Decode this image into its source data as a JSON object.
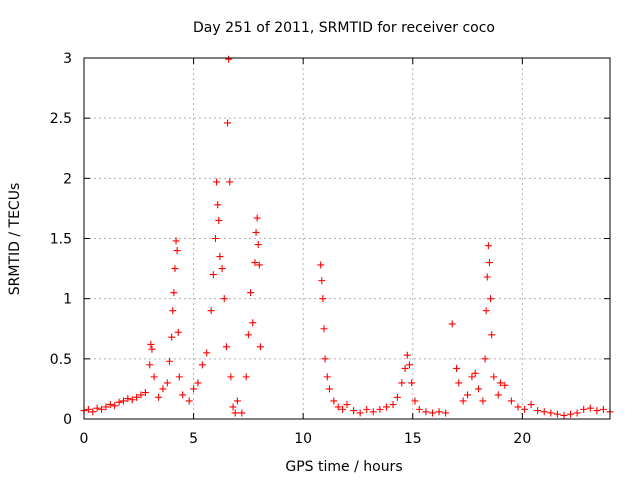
{
  "chart_data": {
    "type": "scatter",
    "title": "Day 251 of 2011, SRMTID for receiver coco",
    "xlabel": "GPS time / hours",
    "ylabel": "SRMTID / TECUs",
    "xlim": [
      0,
      24
    ],
    "ylim": [
      0,
      3
    ],
    "xticks": [
      0,
      5,
      10,
      15,
      20
    ],
    "xtick_labels": [
      "0",
      "5",
      "10",
      "15",
      "20"
    ],
    "yticks": [
      0,
      0.5,
      1,
      1.5,
      2,
      2.5,
      3
    ],
    "ytick_labels": [
      "0",
      "0.5",
      "1",
      "1.5",
      "2",
      "2.5",
      "3"
    ],
    "grid": true,
    "marker": "+",
    "color": "#ff0000",
    "series": [
      {
        "name": "SRMTID",
        "points": [
          [
            0.0,
            0.07
          ],
          [
            0.2,
            0.08
          ],
          [
            0.4,
            0.06
          ],
          [
            0.6,
            0.09
          ],
          [
            0.8,
            0.08
          ],
          [
            1.0,
            0.1
          ],
          [
            1.2,
            0.12
          ],
          [
            1.4,
            0.11
          ],
          [
            1.6,
            0.14
          ],
          [
            1.8,
            0.15
          ],
          [
            2.0,
            0.17
          ],
          [
            2.2,
            0.16
          ],
          [
            2.4,
            0.18
          ],
          [
            2.6,
            0.2
          ],
          [
            2.8,
            0.22
          ],
          [
            3.0,
            0.45
          ],
          [
            3.05,
            0.62
          ],
          [
            3.1,
            0.58
          ],
          [
            3.2,
            0.35
          ],
          [
            3.4,
            0.18
          ],
          [
            3.6,
            0.25
          ],
          [
            3.8,
            0.3
          ],
          [
            3.9,
            0.48
          ],
          [
            4.0,
            0.68
          ],
          [
            4.05,
            0.9
          ],
          [
            4.1,
            1.05
          ],
          [
            4.15,
            1.25
          ],
          [
            4.2,
            1.48
          ],
          [
            4.25,
            1.4
          ],
          [
            4.3,
            0.72
          ],
          [
            4.35,
            0.35
          ],
          [
            4.5,
            0.2
          ],
          [
            4.8,
            0.15
          ],
          [
            5.0,
            0.25
          ],
          [
            5.2,
            0.3
          ],
          [
            5.4,
            0.45
          ],
          [
            5.6,
            0.55
          ],
          [
            5.8,
            0.9
          ],
          [
            5.9,
            1.2
          ],
          [
            6.0,
            1.5
          ],
          [
            6.05,
            1.97
          ],
          [
            6.1,
            1.78
          ],
          [
            6.15,
            1.65
          ],
          [
            6.2,
            1.35
          ],
          [
            6.3,
            1.25
          ],
          [
            6.4,
            1.0
          ],
          [
            6.5,
            0.6
          ],
          [
            6.55,
            2.46
          ],
          [
            6.6,
            2.99
          ],
          [
            6.65,
            1.97
          ],
          [
            6.7,
            0.35
          ],
          [
            6.8,
            0.1
          ],
          [
            6.9,
            0.05
          ],
          [
            7.0,
            0.15
          ],
          [
            7.2,
            0.05
          ],
          [
            7.4,
            0.35
          ],
          [
            7.5,
            0.7
          ],
          [
            7.6,
            1.05
          ],
          [
            7.7,
            0.8
          ],
          [
            7.8,
            1.3
          ],
          [
            7.85,
            1.55
          ],
          [
            7.9,
            1.67
          ],
          [
            7.95,
            1.45
          ],
          [
            8.0,
            1.28
          ],
          [
            8.05,
            0.6
          ],
          [
            10.8,
            1.28
          ],
          [
            10.85,
            1.15
          ],
          [
            10.9,
            1.0
          ],
          [
            10.95,
            0.75
          ],
          [
            11.0,
            0.5
          ],
          [
            11.1,
            0.35
          ],
          [
            11.2,
            0.25
          ],
          [
            11.4,
            0.15
          ],
          [
            11.6,
            0.1
          ],
          [
            11.8,
            0.08
          ],
          [
            12.0,
            0.12
          ],
          [
            12.3,
            0.07
          ],
          [
            12.6,
            0.05
          ],
          [
            12.9,
            0.08
          ],
          [
            13.2,
            0.06
          ],
          [
            13.5,
            0.08
          ],
          [
            13.8,
            0.1
          ],
          [
            14.1,
            0.12
          ],
          [
            14.3,
            0.18
          ],
          [
            14.5,
            0.3
          ],
          [
            14.65,
            0.42
          ],
          [
            14.75,
            0.53
          ],
          [
            14.85,
            0.45
          ],
          [
            14.95,
            0.3
          ],
          [
            15.1,
            0.15
          ],
          [
            15.3,
            0.08
          ],
          [
            15.6,
            0.06
          ],
          [
            15.9,
            0.05
          ],
          [
            16.2,
            0.06
          ],
          [
            16.5,
            0.05
          ],
          [
            16.8,
            0.79
          ],
          [
            17.0,
            0.42
          ],
          [
            17.1,
            0.3
          ],
          [
            17.3,
            0.15
          ],
          [
            17.5,
            0.2
          ],
          [
            17.7,
            0.35
          ],
          [
            17.85,
            0.38
          ],
          [
            18.0,
            0.25
          ],
          [
            18.2,
            0.15
          ],
          [
            18.3,
            0.5
          ],
          [
            18.35,
            0.9
          ],
          [
            18.4,
            1.18
          ],
          [
            18.45,
            1.44
          ],
          [
            18.5,
            1.3
          ],
          [
            18.55,
            1.0
          ],
          [
            18.6,
            0.7
          ],
          [
            18.7,
            0.35
          ],
          [
            18.9,
            0.2
          ],
          [
            19.0,
            0.3
          ],
          [
            19.2,
            0.28
          ],
          [
            19.5,
            0.15
          ],
          [
            19.8,
            0.1
          ],
          [
            20.1,
            0.08
          ],
          [
            20.4,
            0.12
          ],
          [
            20.7,
            0.07
          ],
          [
            21.0,
            0.06
          ],
          [
            21.3,
            0.05
          ],
          [
            21.6,
            0.04
          ],
          [
            21.9,
            0.03
          ],
          [
            22.2,
            0.04
          ],
          [
            22.5,
            0.05
          ],
          [
            22.8,
            0.08
          ],
          [
            23.1,
            0.09
          ],
          [
            23.4,
            0.07
          ],
          [
            23.7,
            0.08
          ],
          [
            24.0,
            0.06
          ]
        ]
      }
    ]
  }
}
